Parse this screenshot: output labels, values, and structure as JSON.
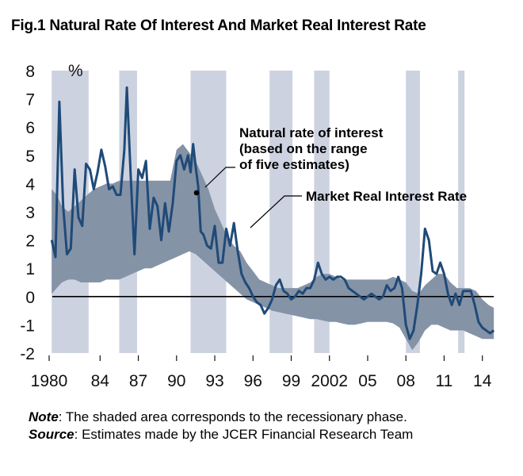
{
  "chart_data": {
    "type": "area",
    "title": "Fig.1 Natural Rate Of Interest And Market Real Interest Rate",
    "y_unit_label": "%",
    "xlim": [
      1980,
      2015.2
    ],
    "ylim": [
      -2,
      8
    ],
    "y_ticks": [
      8,
      7,
      6,
      5,
      4,
      3,
      2,
      1,
      0,
      -1,
      -2
    ],
    "x_ticks": [
      {
        "value": 1980,
        "label": "1980"
      },
      {
        "value": 1984,
        "label": "84"
      },
      {
        "value": 1987,
        "label": "87"
      },
      {
        "value": 1990,
        "label": "90"
      },
      {
        "value": 1993,
        "label": "93"
      },
      {
        "value": 1996,
        "label": "96"
      },
      {
        "value": 1999,
        "label": "99"
      },
      {
        "value": 2002,
        "label": "2002"
      },
      {
        "value": 2005,
        "label": "05"
      },
      {
        "value": 2008,
        "label": "08"
      },
      {
        "value": 2011,
        "label": "11"
      },
      {
        "value": 2014,
        "label": "14"
      }
    ],
    "recessions": [
      [
        1980.2,
        1983.1
      ],
      [
        1985.5,
        1986.9
      ],
      [
        1991.1,
        1993.9
      ],
      [
        1997.3,
        1999.1
      ],
      [
        2000.8,
        2002.0
      ],
      [
        2008.0,
        2009.1
      ],
      [
        2012.1,
        2012.6
      ]
    ],
    "series": [
      {
        "name": "Natural rate of interest (based on the range of five estimates)",
        "type": "band",
        "x": [
          1980.2,
          1980.6,
          1981,
          1981.5,
          1982,
          1982.5,
          1983,
          1983.5,
          1984,
          1984.5,
          1985,
          1985.5,
          1986,
          1986.5,
          1987,
          1987.5,
          1988,
          1988.5,
          1989,
          1989.5,
          1990,
          1990.5,
          1991,
          1991.5,
          1992,
          1992.5,
          1993,
          1993.5,
          1994,
          1994.5,
          1995,
          1995.5,
          1996,
          1996.5,
          1997,
          1997.5,
          1998,
          1998.5,
          1999,
          1999.5,
          2000,
          2000.5,
          2001,
          2001.5,
          2002,
          2002.5,
          2003,
          2003.5,
          2004,
          2004.5,
          2005,
          2005.5,
          2006,
          2006.5,
          2007,
          2007.5,
          2008,
          2008.5,
          2009,
          2009.5,
          2010,
          2010.5,
          2011,
          2011.5,
          2012,
          2012.5,
          2013,
          2013.5,
          2014,
          2014.5,
          2014.9
        ],
        "upper": [
          3.8,
          3.6,
          3.2,
          3.0,
          3.2,
          3.4,
          3.6,
          3.8,
          3.9,
          4.0,
          4.0,
          4.1,
          4.1,
          4.1,
          4.1,
          4.1,
          4.1,
          4.1,
          4.1,
          4.1,
          5.2,
          5.4,
          5.1,
          4.8,
          4.3,
          3.8,
          3.1,
          2.6,
          2.1,
          1.8,
          1.6,
          1.2,
          0.9,
          0.6,
          0.5,
          0.4,
          0.3,
          0.3,
          0.3,
          0.3,
          0.4,
          0.5,
          0.7,
          0.8,
          0.8,
          0.7,
          0.6,
          0.6,
          0.6,
          0.6,
          0.6,
          0.6,
          0.6,
          0.6,
          0.7,
          0.6,
          0.5,
          0.2,
          0.1,
          0.4,
          0.6,
          0.8,
          0.8,
          0.5,
          0.3,
          0.3,
          0.3,
          0.2,
          -0.1,
          -0.3,
          -0.4
        ],
        "lower": [
          0.1,
          0.3,
          0.5,
          0.6,
          0.6,
          0.5,
          0.5,
          0.5,
          0.5,
          0.6,
          0.6,
          0.6,
          0.7,
          0.8,
          0.9,
          1.0,
          1.0,
          1.1,
          1.2,
          1.3,
          1.4,
          1.5,
          1.6,
          1.5,
          1.3,
          1.1,
          0.9,
          0.7,
          0.5,
          0.3,
          0.1,
          -0.1,
          -0.2,
          -0.3,
          -0.4,
          -0.5,
          -0.55,
          -0.6,
          -0.65,
          -0.7,
          -0.75,
          -0.8,
          -0.8,
          -0.85,
          -0.9,
          -0.9,
          -0.95,
          -1.0,
          -1.0,
          -0.95,
          -0.9,
          -0.9,
          -0.9,
          -0.9,
          -0.95,
          -1.1,
          -1.5,
          -1.9,
          -1.6,
          -1.2,
          -1.0,
          -1.0,
          -1.1,
          -1.2,
          -1.2,
          -1.2,
          -1.3,
          -1.4,
          -1.5,
          -1.5,
          -1.5
        ]
      },
      {
        "name": "Market Real Interest Rate",
        "type": "line",
        "x": [
          1980.2,
          1980.5,
          1980.8,
          1981.1,
          1981.4,
          1981.7,
          1982,
          1982.3,
          1982.6,
          1982.9,
          1983.2,
          1983.5,
          1983.8,
          1984.1,
          1984.4,
          1984.7,
          1985,
          1985.3,
          1985.6,
          1985.9,
          1986.1,
          1986.4,
          1986.7,
          1987,
          1987.3,
          1987.6,
          1987.9,
          1988.2,
          1988.5,
          1988.8,
          1989.1,
          1989.4,
          1989.7,
          1990,
          1990.3,
          1990.6,
          1990.9,
          1991.1,
          1991.3,
          1991.5,
          1991.7,
          1991.9,
          1992.1,
          1992.4,
          1992.7,
          1993,
          1993.3,
          1993.6,
          1993.9,
          1994.2,
          1994.5,
          1994.8,
          1995.1,
          1995.4,
          1995.7,
          1996,
          1996.3,
          1996.6,
          1996.9,
          1997.2,
          1997.5,
          1997.8,
          1998.1,
          1998.4,
          1998.7,
          1999,
          1999.3,
          1999.6,
          1999.9,
          2000.2,
          2000.5,
          2000.8,
          2001.1,
          2001.4,
          2001.7,
          2002,
          2002.3,
          2002.6,
          2002.9,
          2003.2,
          2003.5,
          2003.8,
          2004.1,
          2004.4,
          2004.7,
          2005,
          2005.3,
          2005.6,
          2005.9,
          2006.2,
          2006.5,
          2006.8,
          2007.1,
          2007.4,
          2007.7,
          2008,
          2008.3,
          2008.6,
          2008.9,
          2009.2,
          2009.5,
          2009.8,
          2010.1,
          2010.4,
          2010.7,
          2011,
          2011.3,
          2011.6,
          2011.9,
          2012.2,
          2012.5,
          2012.8,
          2013.1,
          2013.4,
          2013.7,
          2014,
          2014.3,
          2014.6,
          2014.9
        ],
        "y": [
          2.0,
          1.4,
          6.9,
          3.2,
          1.5,
          1.7,
          4.5,
          2.8,
          2.5,
          4.7,
          4.5,
          3.8,
          4.4,
          5.2,
          4.6,
          3.8,
          3.9,
          3.6,
          3.6,
          5.2,
          7.4,
          4.3,
          1.5,
          4.5,
          4.2,
          4.8,
          2.4,
          3.5,
          3.2,
          2.0,
          3.3,
          2.3,
          3.3,
          4.8,
          5.0,
          4.5,
          5.0,
          4.4,
          5.4,
          4.6,
          3.9,
          2.3,
          2.2,
          1.8,
          1.7,
          2.5,
          1.2,
          1.2,
          2.4,
          1.8,
          2.6,
          1.6,
          0.8,
          0.5,
          0.3,
          0.0,
          -0.2,
          -0.3,
          -0.6,
          -0.4,
          -0.1,
          0.4,
          0.6,
          0.2,
          0.1,
          -0.1,
          0.0,
          0.2,
          0.1,
          0.3,
          0.3,
          0.6,
          1.2,
          0.8,
          0.6,
          0.7,
          0.6,
          0.7,
          0.7,
          0.6,
          0.3,
          0.2,
          0.1,
          0.0,
          -0.1,
          0.0,
          0.1,
          0.0,
          -0.1,
          0.0,
          0.4,
          0.2,
          0.3,
          0.7,
          0.3,
          -1.0,
          -1.5,
          -1.2,
          -0.3,
          0.8,
          2.4,
          2.0,
          0.9,
          0.8,
          1.2,
          0.8,
          0.1,
          -0.3,
          0.1,
          -0.3,
          0.2,
          0.2,
          0.2,
          -0.3,
          -0.9,
          -1.1,
          -1.2,
          -1.3,
          -1.2
        ]
      }
    ],
    "annotations": [
      {
        "lines": [
          "Natural rate of interest",
          "(based on the range",
          "of five estimates)"
        ]
      },
      {
        "lines": [
          "Market Real Interest Rate"
        ]
      }
    ],
    "colors": {
      "recession": "#ccd2e0",
      "band": "#8593a7",
      "line": "#1f4a78",
      "zero_line": "#000000"
    }
  },
  "notes": {
    "note_label": "Note",
    "note_text": ": The shaded area corresponds to the recessionary phase.",
    "source_label": "Source",
    "source_text": ": Estimates made by the JCER Financial Research Team"
  }
}
